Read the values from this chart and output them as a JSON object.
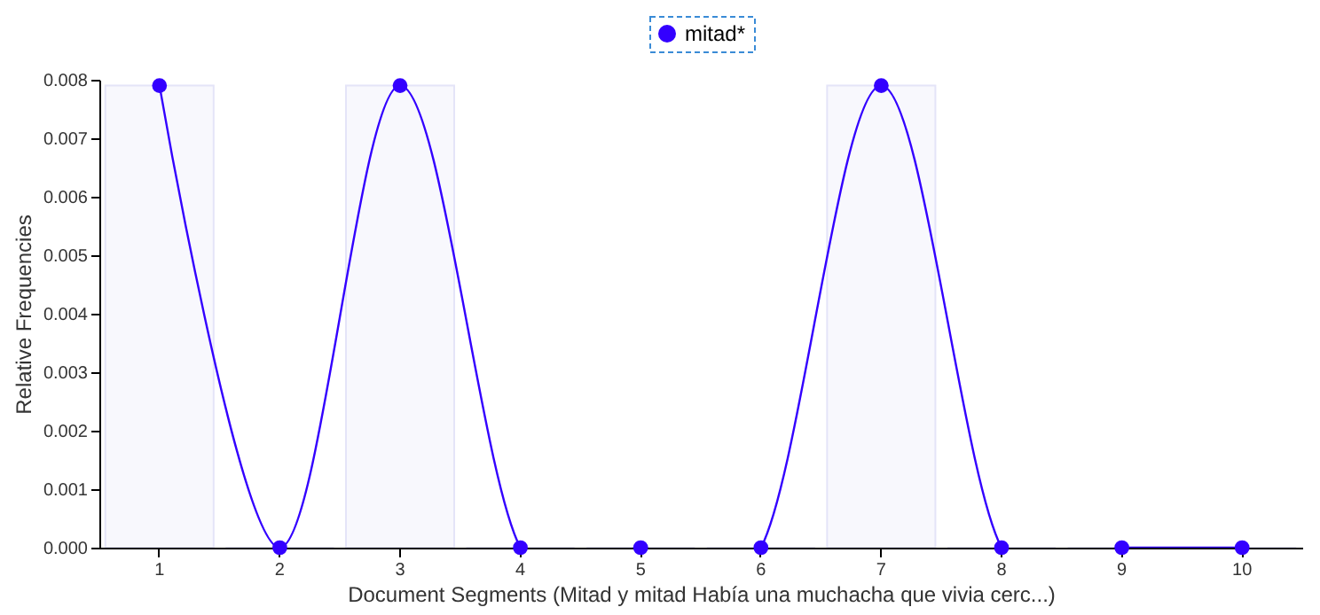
{
  "chart_data": {
    "type": "line",
    "xlabel": "Document Segments (Mitad y mitad Había una muchacha que vivia cerc...)",
    "ylabel": "Relative Frequencies",
    "categories": [
      "1",
      "2",
      "3",
      "4",
      "5",
      "6",
      "7",
      "8",
      "9",
      "10"
    ],
    "series": [
      {
        "type": "bar",
        "color": "#e4e4f8",
        "values": [
          0.0079,
          0,
          0.0079,
          0,
          0,
          0,
          0.0079,
          0,
          0,
          0
        ]
      },
      {
        "name": "mitad*",
        "color": "#3300ff",
        "values": [
          0.0079,
          0,
          0.0079,
          0,
          0,
          0,
          0.0079,
          0,
          0,
          0
        ]
      }
    ],
    "ylim": [
      0,
      0.008
    ],
    "yticks": [
      {
        "value": 0,
        "label": "0.000"
      },
      {
        "value": 0.001,
        "label": "0.001"
      },
      {
        "value": 0.002,
        "label": "0.002"
      },
      {
        "value": 0.003,
        "label": "0.003"
      },
      {
        "value": 0.004,
        "label": "0.004"
      },
      {
        "value": 0.005,
        "label": "0.005"
      },
      {
        "value": 0.006,
        "label": "0.006"
      },
      {
        "value": 0.007,
        "label": "0.007"
      },
      {
        "value": 0.008,
        "label": "0.008"
      }
    ],
    "grid": false,
    "legend": "top",
    "marker": "circle",
    "line_style": "solid"
  }
}
